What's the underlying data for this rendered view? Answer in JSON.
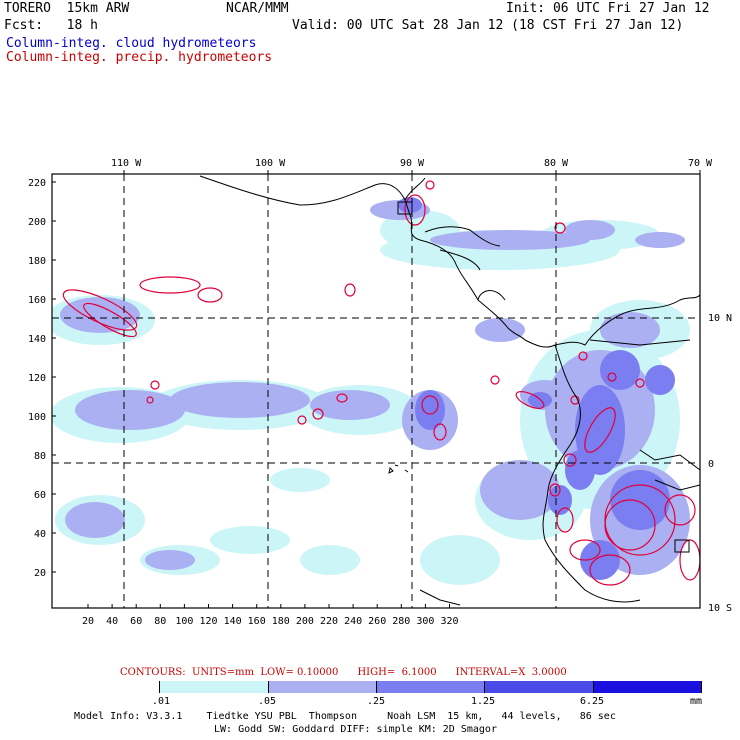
{
  "header": {
    "model": "TORERO  15km ARW",
    "center": "NCAR/MMM",
    "init": "Init: 06 UTC Fri 27 Jan 12",
    "fcst": "Fcst:   18 h",
    "valid": "Valid: 00 UTC Sat 28 Jan 12 (18 CST Fri 27 Jan 12)",
    "field1": "Column-integ. cloud hydrometeors",
    "field2": "Column-integ. precip. hydrometeors"
  },
  "axes": {
    "lon_labels": [
      "110 W",
      "100 W",
      "90 W",
      "80 W",
      "70 W"
    ],
    "lat_labels": [
      "10 N",
      "0",
      "10 S"
    ],
    "y_ticks": [
      "220",
      "200",
      "180",
      "160",
      "140",
      "120",
      "100",
      "80",
      "60",
      "40",
      "20"
    ],
    "x_ticks": [
      "20",
      "40",
      "60",
      "80",
      "100",
      "120",
      "140",
      "160",
      "180",
      "200",
      "220",
      "240",
      "260",
      "280",
      "300",
      "320"
    ]
  },
  "contour_info": "CONTOURS:  UNITS=mm  LOW= 0.10000      HIGH=  6.1000      INTERVAL=X  3.0000",
  "colorbar": {
    "levels": [
      ".01",
      ".05",
      ".25",
      "1.25",
      "6.25"
    ],
    "units": "mm",
    "colors": [
      "#ffffff",
      "#ccf5f8",
      "#aab0f2",
      "#7a7ef0",
      "#4a4ae6",
      "#1a10e0"
    ]
  },
  "footer": {
    "line1": "Model Info: V3.3.1    Tiedtke YSU PBL  Thompson     Noah LSM  15 km,   44 levels,   86 sec",
    "line2": "LW: Godd SW: Goddard DIFF: simple KM: 2D Smagor"
  }
}
